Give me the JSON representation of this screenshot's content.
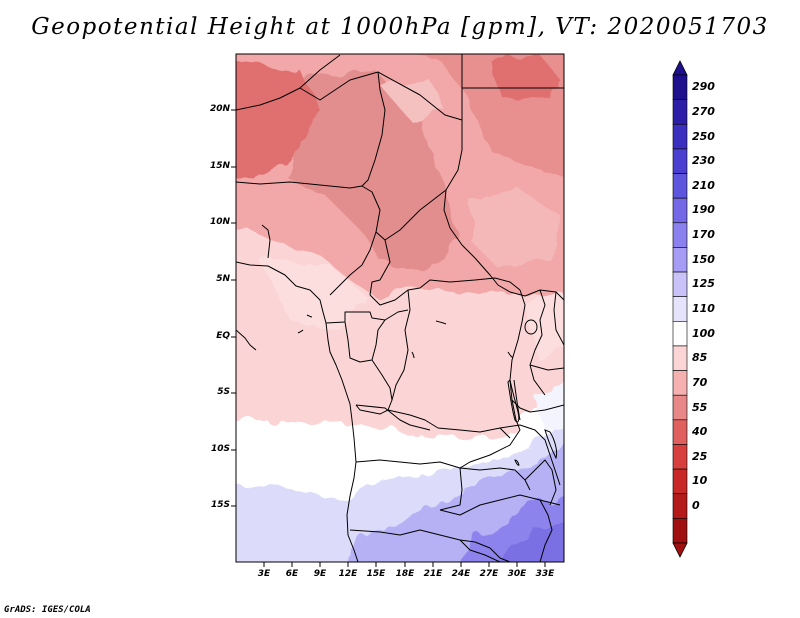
{
  "title": "Geopotential Height at 1000hPa [gpm], VT: 2020051703",
  "credit": "GrADS: IGES/COLA",
  "axes": {
    "lat_ticks": [
      "20N",
      "15N",
      "10N",
      "5N",
      "EQ",
      "5S",
      "10S",
      "15S"
    ],
    "lon_ticks": [
      "3E",
      "6E",
      "9E",
      "12E",
      "15E",
      "18E",
      "21E",
      "24E",
      "27E",
      "30E",
      "33E"
    ]
  },
  "colorbar": {
    "labels": [
      "290",
      "270",
      "250",
      "230",
      "210",
      "190",
      "170",
      "150",
      "125",
      "110",
      "100",
      "85",
      "70",
      "55",
      "40",
      "25",
      "10",
      "0"
    ],
    "colors": [
      "#1e0f8c",
      "#2c1ea6",
      "#3a2fbf",
      "#4b3fd1",
      "#5e55de",
      "#7468e6",
      "#8a80ee",
      "#a69cf5",
      "#c9c3fa",
      "#e6e4fd",
      "#ffffff",
      "#fbd5d5",
      "#f5b0b0",
      "#e88787",
      "#e06060",
      "#d84040",
      "#c92828",
      "#b51a1a",
      "#a01010"
    ]
  },
  "map": {
    "region": "Central Africa",
    "field": "Geopotential Height at 1000hPa",
    "units": "gpm"
  }
}
